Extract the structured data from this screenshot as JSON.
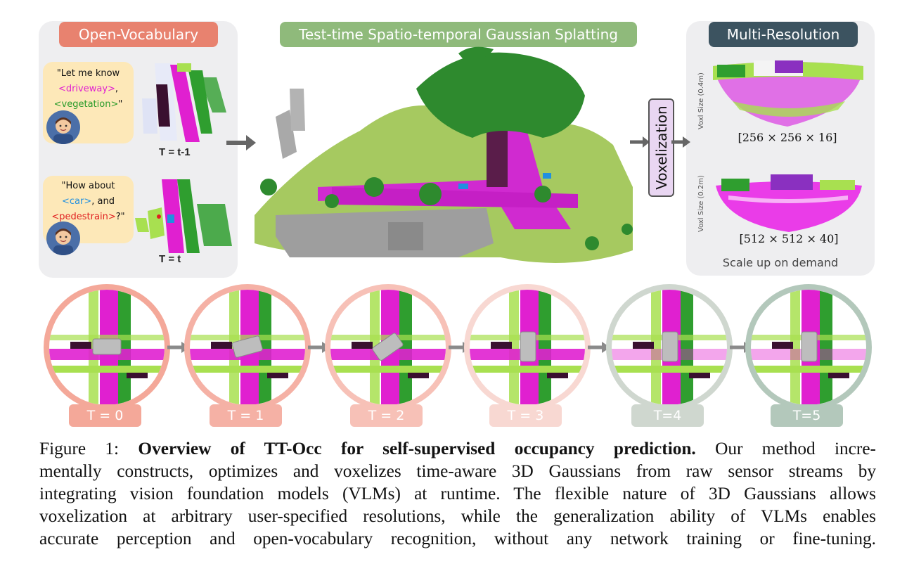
{
  "panels": {
    "open_vocab": "Open-Vocabulary",
    "gaussian": "Test-time Spatio-temporal Gaussian Splatting",
    "multi_res": "Multi-Resolution"
  },
  "queries": {
    "q1_pre": "\"Let me know",
    "q1_driveway": "<driveway>",
    "q1_comma": ",",
    "q1_vegetation": "<vegetation>",
    "q1_end": "\"",
    "q2_pre": "\"How about",
    "q2_car": "<car>",
    "q2_and": ", and",
    "q2_ped": "<pedestrain>",
    "q2_end": "?\""
  },
  "time_labels_top": [
    "T = t-1",
    "T = t"
  ],
  "voxelization": "Voxelization",
  "resolutions": [
    {
      "voxel": "Voxl Size (0.4m)",
      "dims": "[256 × 256 × 16]"
    },
    {
      "voxel": "Voxl Size (0.2m)",
      "dims": "[512 × 512 × 40]"
    }
  ],
  "scale_note": "Scale up on demand",
  "timesteps": [
    {
      "label": "T = 0",
      "color": "#f4a899"
    },
    {
      "label": "T = 1",
      "color": "#f5b1a5"
    },
    {
      "label": "T = 2",
      "color": "#f7c1b7"
    },
    {
      "label": "T = 3",
      "color": "#f8d8d2"
    },
    {
      "label": "T=4",
      "color": "#cfd7cf"
    },
    {
      "label": "T=5",
      "color": "#b3c8bb"
    }
  ],
  "colors": {
    "magenta": "#e020d0",
    "green": "#2f9e2f",
    "light_green": "#a8e050",
    "dark_purple": "#3a1030",
    "gray": "#bdbdbd"
  },
  "caption": {
    "prefix": "Figure 1: ",
    "bold": "Overview of TT-Occ for self-supervised occupancy prediction.",
    "l1_rest": " Our method incre-",
    "l2": "mentally constructs, optimizes and voxelizes time-aware 3D Gaussians from raw sensor streams by",
    "l3": "integrating vision foundation models (VLMs) at runtime. The flexible nature of 3D Gaussians allows",
    "l4": "voxelization at arbitrary user-specified resolutions, while the generalization ability of VLMs enables",
    "l5": "accurate perception and open-vocabulary recognition, without any network training or fine-tuning."
  }
}
